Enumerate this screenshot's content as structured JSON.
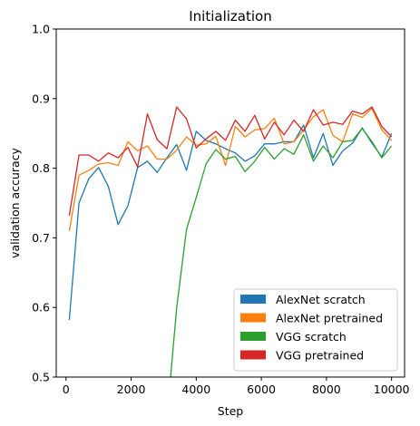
{
  "chart_data": {
    "type": "line",
    "title": "Initialization",
    "xlabel": "Step",
    "ylabel": "validation accuracy",
    "xlim": [
      -300,
      10400
    ],
    "ylim": [
      0.5,
      1.0
    ],
    "xticks": [
      0,
      2000,
      4000,
      6000,
      8000,
      10000
    ],
    "xtick_labels": [
      "0",
      "2000",
      "4000",
      "6000",
      "8000",
      "10000"
    ],
    "yticks": [
      0.5,
      0.6,
      0.7,
      0.8,
      0.9,
      1.0
    ],
    "ytick_labels": [
      "0.5",
      "0.6",
      "0.7",
      "0.8",
      "0.9",
      "1.0"
    ],
    "grid": false,
    "legend_position": "lower-right",
    "x": [
      100,
      400,
      700,
      1000,
      1300,
      1600,
      1900,
      2200,
      2500,
      2800,
      3100,
      3400,
      3700,
      4000,
      4300,
      4600,
      4900,
      5200,
      5500,
      5800,
      6100,
      6400,
      6700,
      7000,
      7300,
      7600,
      7900,
      8200,
      8500,
      8800,
      9100,
      9400,
      9700,
      10000
    ],
    "series": [
      {
        "name": "AlexNet scratch",
        "color": "#1f77b4",
        "values": [
          0.582,
          0.75,
          0.785,
          0.801,
          0.774,
          0.719,
          0.746,
          0.801,
          0.81,
          0.794,
          0.815,
          0.834,
          0.797,
          0.853,
          0.84,
          0.835,
          0.828,
          0.822,
          0.81,
          0.818,
          0.835,
          0.835,
          0.838,
          0.838,
          0.862,
          0.815,
          0.85,
          0.804,
          0.825,
          0.836,
          0.858,
          0.836,
          0.816,
          0.85
        ]
      },
      {
        "name": "AlexNet pretrained",
        "color": "#ff7f0e",
        "values": [
          0.71,
          0.79,
          0.797,
          0.806,
          0.808,
          0.804,
          0.838,
          0.825,
          0.832,
          0.813,
          0.813,
          0.826,
          0.845,
          0.833,
          0.835,
          0.846,
          0.804,
          0.86,
          0.845,
          0.855,
          0.857,
          0.872,
          0.835,
          0.838,
          0.855,
          0.874,
          0.884,
          0.847,
          0.838,
          0.878,
          0.873,
          0.886,
          0.855,
          0.84
        ]
      },
      {
        "name": "VGG scratch",
        "color": "#2ca02c",
        "values": [
          null,
          null,
          null,
          null,
          null,
          null,
          null,
          null,
          null,
          null,
          0.44,
          0.6,
          0.712,
          0.758,
          0.806,
          0.827,
          0.813,
          0.817,
          0.795,
          0.81,
          0.83,
          0.813,
          0.828,
          0.82,
          0.848,
          0.81,
          0.832,
          0.815,
          0.838,
          0.84,
          0.857,
          0.838,
          0.815,
          0.832
        ]
      },
      {
        "name": "VGG pretrained",
        "color": "#d62728",
        "values": [
          0.732,
          0.819,
          0.819,
          0.81,
          0.822,
          0.815,
          0.83,
          0.802,
          0.878,
          0.841,
          0.828,
          0.888,
          0.871,
          0.829,
          0.842,
          0.853,
          0.84,
          0.869,
          0.853,
          0.876,
          0.842,
          0.866,
          0.848,
          0.869,
          0.853,
          0.884,
          0.862,
          0.866,
          0.863,
          0.882,
          0.878,
          0.888,
          0.86,
          0.845
        ]
      }
    ]
  }
}
